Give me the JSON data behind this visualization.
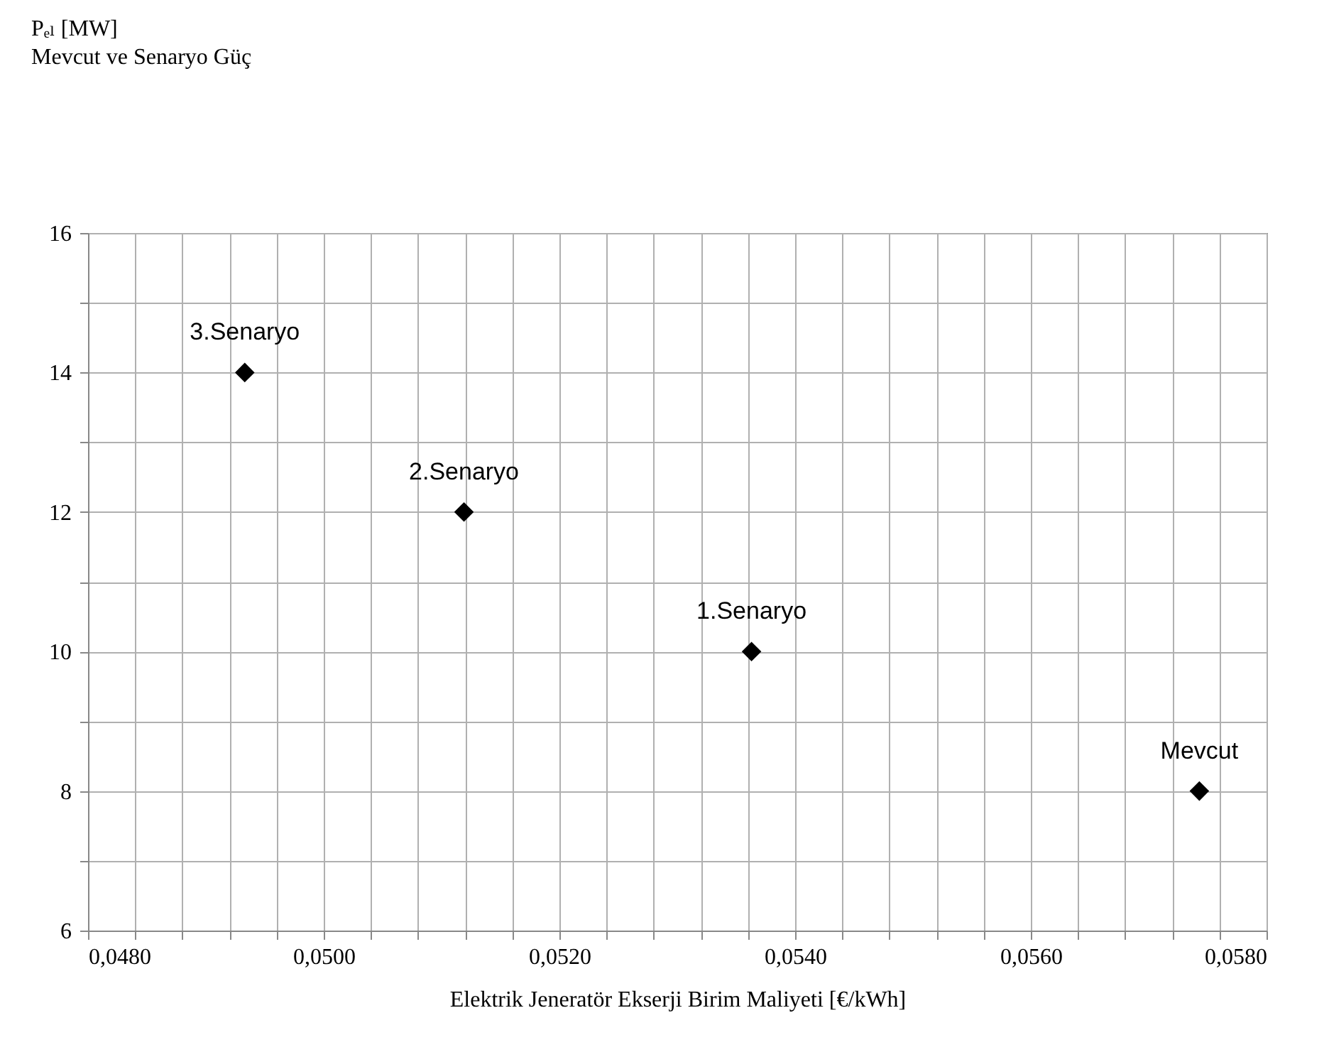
{
  "chart_data": {
    "type": "scatter",
    "title": "Mevcut ve Senaryo Güç",
    "xlabel": "Elektrik Jeneratör Ekserji Birim Maliyeti [€/kWh]",
    "x": [
      0.04933,
      0.05119,
      0.05363,
      0.05743
    ],
    "series": [
      {
        "color": "#000000",
        "values": [
          14,
          12,
          10,
          8
        ]
      }
    ],
    "marker": "diamond",
    "annotations": [
      "Pₑₗ [MW]",
      {
        "text": "3.Senaryo",
        "x": 0.04933,
        "y": 14
      },
      {
        "text": "2.Senaryo",
        "x": 0.05119,
        "y": 12
      },
      {
        "text": "1.Senaryo",
        "x": 0.05363,
        "y": 10
      },
      {
        "text": "Mevcut",
        "x": 0.05743,
        "y": 8
      }
    ],
    "xlim": [
      0.048,
      0.058
    ],
    "xticks": [
      {
        "value": 0.048,
        "label": "0,0480"
      },
      {
        "value": 0.0484,
        "label": null
      },
      {
        "value": 0.0488,
        "label": null
      },
      {
        "value": 0.0492,
        "label": null
      },
      {
        "value": 0.0496,
        "label": null
      },
      {
        "value": 0.05,
        "label": "0,0500"
      },
      {
        "value": 0.0504,
        "label": null
      },
      {
        "value": 0.0508,
        "label": null
      },
      {
        "value": 0.0512,
        "label": null
      },
      {
        "value": 0.0516,
        "label": null
      },
      {
        "value": 0.052,
        "label": "0,0520"
      },
      {
        "value": 0.0524,
        "label": null
      },
      {
        "value": 0.0528,
        "label": null
      },
      {
        "value": 0.0532,
        "label": null
      },
      {
        "value": 0.0536,
        "label": null
      },
      {
        "value": 0.054,
        "label": "0,0540"
      },
      {
        "value": 0.0544,
        "label": null
      },
      {
        "value": 0.0548,
        "label": null
      },
      {
        "value": 0.0552,
        "label": null
      },
      {
        "value": 0.0556,
        "label": null
      },
      {
        "value": 0.056,
        "label": "0,0560"
      },
      {
        "value": 0.0564,
        "label": null
      },
      {
        "value": 0.0568,
        "label": null
      },
      {
        "value": 0.0572,
        "label": null
      },
      {
        "value": 0.0576,
        "label": null
      },
      {
        "value": 0.058,
        "label": "0,0580"
      }
    ],
    "ylim": [
      6,
      16
    ],
    "yticks": [
      6,
      {
        "value": 7,
        "label": null
      },
      8,
      {
        "value": 9,
        "label": null
      },
      10,
      {
        "value": 11,
        "label": null
      },
      12,
      {
        "value": 13,
        "label": null
      },
      14,
      {
        "value": 15,
        "label": null
      },
      16
    ],
    "grid": true
  }
}
